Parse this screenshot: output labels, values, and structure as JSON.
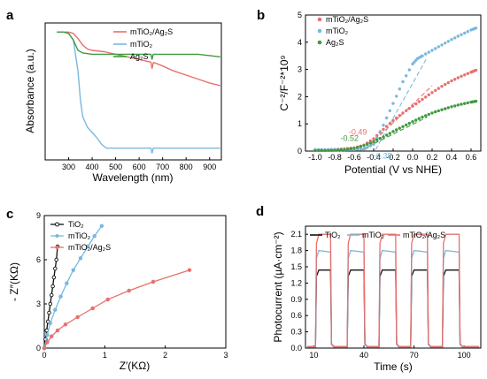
{
  "colors": {
    "red": "#e8706e",
    "blue": "#7ab8de",
    "green": "#3f9a3f",
    "black": "#111111"
  },
  "panel_labels": [
    "a",
    "b",
    "c",
    "d"
  ],
  "chart_data": [
    {
      "type": "line",
      "panel": "a",
      "xlabel": "Wavelength (nm)",
      "ylabel": "Absorbance (a.u.)",
      "xlim": [
        200,
        950
      ],
      "ylim": [
        0,
        1.05
      ],
      "xticks": [
        "300",
        "400",
        "500",
        "600",
        "700",
        "800",
        "900"
      ],
      "yticks": [],
      "legend_position": "top-right",
      "series": [
        {
          "name": "mTiO₂/Ag₂S",
          "color": "#e8706e",
          "x": [
            250,
            280,
            300,
            320,
            340,
            360,
            380,
            400,
            450,
            500,
            550,
            600,
            650,
            655,
            660,
            665,
            700,
            750,
            800,
            850,
            900,
            945
          ],
          "y": [
            0.98,
            0.98,
            0.98,
            0.97,
            0.93,
            0.88,
            0.85,
            0.84,
            0.83,
            0.81,
            0.79,
            0.77,
            0.75,
            0.7,
            0.745,
            0.745,
            0.72,
            0.68,
            0.65,
            0.62,
            0.59,
            0.57
          ]
        },
        {
          "name": "mTiO₂",
          "color": "#7ab8de",
          "x": [
            250,
            280,
            300,
            320,
            340,
            350,
            360,
            380,
            400,
            420,
            440,
            460,
            500,
            550,
            600,
            650,
            655,
            660,
            665,
            700,
            750,
            800,
            850,
            900,
            945
          ],
          "y": [
            0.98,
            0.98,
            0.97,
            0.92,
            0.68,
            0.46,
            0.33,
            0.25,
            0.21,
            0.17,
            0.12,
            0.09,
            0.09,
            0.09,
            0.09,
            0.09,
            0.05,
            0.09,
            0.09,
            0.09,
            0.09,
            0.09,
            0.09,
            0.09,
            0.09
          ]
        },
        {
          "name": "Ag₂S",
          "color": "#3f9a3f",
          "x": [
            250,
            280,
            300,
            320,
            340,
            360,
            400,
            450,
            500,
            550,
            600,
            650,
            655,
            660,
            665,
            700,
            750,
            800,
            850,
            900,
            945
          ],
          "y": [
            0.98,
            0.98,
            0.97,
            0.92,
            0.84,
            0.82,
            0.81,
            0.81,
            0.81,
            0.81,
            0.81,
            0.81,
            0.77,
            0.81,
            0.81,
            0.81,
            0.81,
            0.81,
            0.81,
            0.8,
            0.79
          ]
        }
      ]
    },
    {
      "type": "scatter",
      "panel": "b",
      "xlabel": "Potential (V vs NHE)",
      "ylabel": "C⁻²/F⁻²*10⁹",
      "xlim": [
        -1.1,
        0.7
      ],
      "ylim": [
        0,
        5
      ],
      "xticks": [
        "-1.0",
        "-0.8",
        "-0.6",
        "-0.4",
        "-0.2",
        "0.0",
        "0.2",
        "0.4",
        "0.6"
      ],
      "xtick_values": [
        -1.0,
        -0.8,
        -0.6,
        -0.4,
        -0.2,
        0.0,
        0.2,
        0.4,
        0.6
      ],
      "yticks": [
        "0",
        "1",
        "2",
        "3",
        "4",
        "5"
      ],
      "legend_position": "top-left",
      "annotations": [
        {
          "text": "-0.49",
          "x": -0.49,
          "color": "#e8706e"
        },
        {
          "text": "-0.52",
          "x": -0.52,
          "color": "#3f9a3f"
        },
        {
          "text": "-0.38",
          "x": -0.38,
          "color": "#7ab8de"
        }
      ],
      "tangents": [
        {
          "color": "#e8706e",
          "x": [
            -0.49,
            0.2
          ],
          "y": [
            0.05,
            2.4
          ]
        },
        {
          "color": "#3f9a3f",
          "x": [
            -0.52,
            0.15
          ],
          "y": [
            0.05,
            1.25
          ]
        },
        {
          "color": "#7ab8de",
          "x": [
            -0.38,
            0.15
          ],
          "y": [
            0.05,
            3.45
          ]
        }
      ],
      "series": [
        {
          "name": "mTiO₂/Ag₂S",
          "color": "#e8706e",
          "x": [
            -1.0,
            -0.9,
            -0.8,
            -0.7,
            -0.6,
            -0.5,
            -0.4,
            -0.3,
            -0.2,
            -0.1,
            0.0,
            0.1,
            0.2,
            0.3,
            0.4,
            0.5,
            0.6,
            0.65
          ],
          "y": [
            0.05,
            0.05,
            0.06,
            0.08,
            0.12,
            0.22,
            0.45,
            0.8,
            1.12,
            1.4,
            1.65,
            1.9,
            2.15,
            2.38,
            2.58,
            2.75,
            2.9,
            2.97
          ]
        },
        {
          "name": "mTiO₂",
          "color": "#7ab8de",
          "x": [
            -1.0,
            -0.9,
            -0.8,
            -0.7,
            -0.6,
            -0.5,
            -0.4,
            -0.3,
            -0.2,
            -0.1,
            0.0,
            0.05,
            0.1,
            0.2,
            0.3,
            0.4,
            0.5,
            0.6,
            0.65
          ],
          "y": [
            0.05,
            0.05,
            0.05,
            0.05,
            0.06,
            0.08,
            0.25,
            0.95,
            1.75,
            2.55,
            3.2,
            3.4,
            3.5,
            3.7,
            3.9,
            4.1,
            4.28,
            4.45,
            4.52
          ]
        },
        {
          "name": "Ag₂S",
          "color": "#3f9a3f",
          "x": [
            -1.0,
            -0.9,
            -0.8,
            -0.7,
            -0.6,
            -0.5,
            -0.4,
            -0.3,
            -0.2,
            -0.1,
            0.0,
            0.1,
            0.2,
            0.3,
            0.4,
            0.5,
            0.6,
            0.65
          ],
          "y": [
            0.02,
            0.02,
            0.03,
            0.05,
            0.1,
            0.2,
            0.35,
            0.52,
            0.72,
            0.9,
            1.08,
            1.25,
            1.4,
            1.52,
            1.63,
            1.72,
            1.8,
            1.83
          ]
        }
      ]
    },
    {
      "type": "line",
      "panel": "c",
      "xlabel": "Z′(KΩ)",
      "ylabel": "- Z″(KΩ)",
      "xlim": [
        0,
        3
      ],
      "ylim": [
        0,
        9
      ],
      "xticks": [
        "0",
        "1",
        "2",
        "3"
      ],
      "yticks": [
        "0",
        "3",
        "6",
        "9"
      ],
      "legend_position": "top-left",
      "series": [
        {
          "name": "TiO₂",
          "color": "#111111",
          "marker": "circle",
          "x": [
            0.0,
            0.02,
            0.04,
            0.06,
            0.08,
            0.1,
            0.12,
            0.14,
            0.16,
            0.18,
            0.2,
            0.22
          ],
          "y": [
            0.0,
            0.6,
            1.2,
            1.8,
            2.4,
            3.0,
            3.6,
            4.2,
            4.8,
            5.4,
            6.0,
            6.9
          ]
        },
        {
          "name": "mTiO₂",
          "color": "#7ab8de",
          "marker": "circle",
          "x": [
            0.0,
            0.05,
            0.1,
            0.18,
            0.27,
            0.37,
            0.48,
            0.6,
            0.72,
            0.83,
            0.95
          ],
          "y": [
            0.0,
            0.9,
            1.7,
            2.6,
            3.5,
            4.4,
            5.3,
            6.1,
            6.9,
            7.6,
            8.3
          ]
        },
        {
          "name": "mTiO₂/Ag₂S",
          "color": "#e8706e",
          "marker": "circle",
          "x": [
            0.0,
            0.05,
            0.12,
            0.22,
            0.35,
            0.55,
            0.8,
            1.05,
            1.4,
            1.8,
            2.4
          ],
          "y": [
            0.0,
            0.4,
            0.8,
            1.2,
            1.6,
            2.1,
            2.7,
            3.3,
            3.9,
            4.5,
            5.3
          ]
        }
      ]
    },
    {
      "type": "line",
      "panel": "d",
      "xlabel": "Time (s)",
      "ylabel": "Photocurrent (µA·cm⁻²)",
      "xlim": [
        5,
        110
      ],
      "ylim": [
        0,
        2.25
      ],
      "xticks": [
        "10",
        "40",
        "70",
        "100"
      ],
      "xtick_values": [
        10,
        40,
        70,
        100
      ],
      "yticks": [
        "0.0",
        "0.3",
        "0.6",
        "0.9",
        "1.2",
        "1.5",
        "1.8",
        "2.1"
      ],
      "ytick_values": [
        0.0,
        0.3,
        0.6,
        0.9,
        1.2,
        1.5,
        1.8,
        2.1
      ],
      "legend_position": "top",
      "light_on_intervals": [
        [
          11,
          20
        ],
        [
          30,
          40
        ],
        [
          49,
          59
        ],
        [
          68,
          78
        ],
        [
          87,
          97
        ]
      ],
      "series": [
        {
          "name": "TiO₂",
          "color": "#111111",
          "on_level": 1.44,
          "off_level": 0.02
        },
        {
          "name": "mTiO₂",
          "color": "#7ab8de",
          "on_level": 1.8,
          "off_level": 0.02
        },
        {
          "name": "mTiO₂/Ag₂S",
          "color": "#e8706e",
          "on_level": 2.1,
          "off_level": 0.03
        }
      ]
    }
  ]
}
